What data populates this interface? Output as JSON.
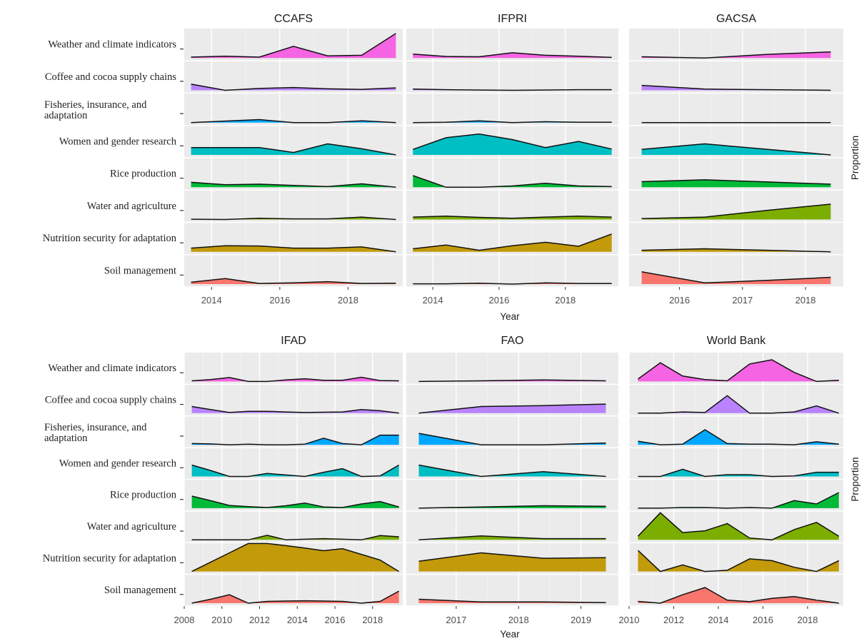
{
  "chart_data": [
    {
      "type": "area",
      "row_labels": [
        "Weather and climate indicators",
        "Coffee and cocoa supply chains",
        "Fisheries, insurance, and\nadaptation",
        "Women and gender research",
        "Rice production",
        "Water and agriculture",
        "Nutrition security for adaptation",
        "Soil management"
      ],
      "colors": [
        "#f564e3",
        "#b983ff",
        "#00a9ff",
        "#00bfc4",
        "#00ba38",
        "#7cae00",
        "#c29a0a",
        "#f8766d"
      ],
      "xlabel": "Year",
      "ylabel": "Proportion",
      "facets": [
        {
          "title": "CCAFS",
          "xlim": [
            2013.2,
            2019.6
          ],
          "xticks": [
            2014,
            2016,
            2018
          ],
          "x": [
            2013.4,
            2014.4,
            2015.4,
            2016.4,
            2017.4,
            2018.4,
            2019.4
          ],
          "series": [
            {
              "values": [
                0.03,
                0.06,
                0.03,
                0.38,
                0.07,
                0.09,
                0.8
              ]
            },
            {
              "values": [
                0.2,
                0.0,
                0.06,
                0.09,
                0.05,
                0.03,
                0.08
              ]
            },
            {
              "values": [
                0.0,
                0.05,
                0.1,
                0.0,
                0.0,
                0.06,
                0.0
              ]
            },
            {
              "values": [
                0.24,
                0.24,
                0.24,
                0.08,
                0.36,
                0.2,
                0.0
              ]
            },
            {
              "values": [
                0.16,
                0.08,
                0.1,
                0.06,
                0.02,
                0.11,
                0.0
              ]
            },
            {
              "values": [
                0.01,
                0.0,
                0.04,
                0.02,
                0.02,
                0.08,
                0.0
              ]
            },
            {
              "values": [
                0.12,
                0.2,
                0.19,
                0.12,
                0.12,
                0.16,
                0.0
              ]
            },
            {
              "values": [
                0.06,
                0.18,
                0.02,
                0.04,
                0.08,
                0.02,
                0.03
              ]
            }
          ]
        },
        {
          "title": "IFPRI",
          "xlim": [
            2013.2,
            2019.6
          ],
          "xticks": [
            2014,
            2016,
            2018
          ],
          "x": [
            2013.4,
            2014.4,
            2015.4,
            2016.4,
            2017.4,
            2018.4,
            2019.4
          ],
          "series": [
            {
              "values": [
                0.13,
                0.05,
                0.04,
                0.17,
                0.09,
                0.06,
                0.02
              ]
            },
            {
              "values": [
                0.04,
                0.02,
                0.01,
                0.0,
                0.01,
                0.02,
                0.02
              ]
            },
            {
              "values": [
                0.0,
                0.01,
                0.06,
                0.0,
                0.03,
                0.01,
                0.01
              ]
            },
            {
              "values": [
                0.18,
                0.56,
                0.68,
                0.5,
                0.24,
                0.44,
                0.19
              ]
            },
            {
              "values": [
                0.38,
                0.0,
                0.0,
                0.04,
                0.13,
                0.04,
                0.02
              ]
            },
            {
              "values": [
                0.08,
                0.11,
                0.07,
                0.04,
                0.08,
                0.11,
                0.08
              ]
            },
            {
              "values": [
                0.1,
                0.22,
                0.05,
                0.2,
                0.31,
                0.18,
                0.58
              ]
            },
            {
              "values": [
                0.01,
                0.01,
                0.03,
                0.0,
                0.04,
                0.02,
                0.02
              ]
            }
          ]
        },
        {
          "title": "GACSA",
          "xlim": [
            2015.2,
            2018.6
          ],
          "xticks": [
            2016,
            2017,
            2018
          ],
          "x": [
            2015.4,
            2016.4,
            2017.4,
            2018.4
          ],
          "series": [
            {
              "values": [
                0.04,
                0.0,
                0.12,
                0.2
              ]
            },
            {
              "values": [
                0.16,
                0.04,
                0.02,
                0.0
              ]
            },
            {
              "values": [
                0.0,
                0.0,
                0.0,
                0.0
              ]
            },
            {
              "values": [
                0.18,
                0.36,
                0.18,
                0.0
              ]
            },
            {
              "values": [
                0.18,
                0.24,
                0.17,
                0.1
              ]
            },
            {
              "values": [
                0.03,
                0.08,
                0.3,
                0.5
              ]
            },
            {
              "values": [
                0.05,
                0.1,
                0.05,
                0.0
              ]
            },
            {
              "values": [
                0.4,
                0.04,
                0.12,
                0.22
              ]
            }
          ]
        },
        {
          "title": "IFAD",
          "xlim": [
            2008,
            2019.6
          ],
          "xticks": [
            2008,
            2010,
            2012,
            2014,
            2016,
            2018
          ],
          "x": [
            2008.4,
            2009.4,
            2010.4,
            2011.4,
            2012.4,
            2013.4,
            2014.4,
            2015.4,
            2016.4,
            2017.4,
            2018.4,
            2019.4
          ],
          "series": [
            {
              "values": [
                0.02,
                0.06,
                0.13,
                0.0,
                0.0,
                0.05,
                0.09,
                0.04,
                0.04,
                0.14,
                0.03,
                0.02
              ]
            },
            {
              "values": [
                0.22,
                0.12,
                0.02,
                0.06,
                0.06,
                0.04,
                0.02,
                0.03,
                0.04,
                0.12,
                0.08,
                0.0
              ]
            },
            {
              "values": [
                0.04,
                0.03,
                0.0,
                0.02,
                0.0,
                0.0,
                0.02,
                0.22,
                0.04,
                0.0,
                0.32,
                0.32
              ]
            },
            {
              "values": [
                0.38,
                0.2,
                0.0,
                0.0,
                0.1,
                0.05,
                0.0,
                0.14,
                0.26,
                0.0,
                0.02,
                0.38
              ]
            },
            {
              "values": [
                0.4,
                0.25,
                0.09,
                0.05,
                0.02,
                0.08,
                0.17,
                0.04,
                0.02,
                0.14,
                0.22,
                0.04
              ]
            },
            {
              "values": [
                0.0,
                0.0,
                0.0,
                0.0,
                0.15,
                0.0,
                0.02,
                0.04,
                0.02,
                0.0,
                0.14,
                0.1
              ]
            },
            {
              "values": [
                0.0,
                0.31,
                0.62,
                0.93,
                0.93,
                0.86,
                0.78,
                0.69,
                0.76,
                0.57,
                0.38,
                0.0
              ]
            },
            {
              "values": [
                0.0,
                0.13,
                0.28,
                0.0,
                0.06,
                0.07,
                0.08,
                0.07,
                0.06,
                0.0,
                0.06,
                0.4
              ]
            }
          ]
        },
        {
          "title": "FAO",
          "xlim": [
            2016.2,
            2019.6
          ],
          "xticks": [
            2017,
            2018,
            2019
          ],
          "x": [
            2016.4,
            2017.4,
            2018.4,
            2019.4
          ],
          "series": [
            {
              "values": [
                0.0,
                0.02,
                0.05,
                0.02
              ]
            },
            {
              "values": [
                0.0,
                0.22,
                0.25,
                0.3
              ]
            },
            {
              "values": [
                0.38,
                0.0,
                0.0,
                0.06
              ]
            },
            {
              "values": [
                0.38,
                0.0,
                0.16,
                0.0
              ]
            },
            {
              "values": [
                0.0,
                0.04,
                0.08,
                0.06
              ]
            },
            {
              "values": [
                0.0,
                0.13,
                0.04,
                0.04
              ]
            },
            {
              "values": [
                0.34,
                0.62,
                0.44,
                0.46
              ]
            },
            {
              "values": [
                0.13,
                0.04,
                0.04,
                0.02
              ]
            }
          ]
        },
        {
          "title": "World Bank",
          "xlim": [
            2010,
            2019.6
          ],
          "xticks": [
            2010,
            2012,
            2014,
            2016,
            2018
          ],
          "x": [
            2010.4,
            2011.4,
            2012.4,
            2013.4,
            2014.4,
            2015.4,
            2016.4,
            2017.4,
            2018.4,
            2019.4
          ],
          "series": [
            {
              "values": [
                0.08,
                0.62,
                0.18,
                0.06,
                0.02,
                0.58,
                0.72,
                0.3,
                0.0,
                0.04
              ]
            },
            {
              "values": [
                0.0,
                0.0,
                0.04,
                0.02,
                0.58,
                0.0,
                0.0,
                0.04,
                0.24,
                0.0
              ]
            },
            {
              "values": [
                0.12,
                0.0,
                0.02,
                0.5,
                0.04,
                0.02,
                0.02,
                0.0,
                0.1,
                0.02
              ]
            },
            {
              "values": [
                0.0,
                0.0,
                0.24,
                0.0,
                0.06,
                0.06,
                0.0,
                0.02,
                0.14,
                0.14
              ]
            },
            {
              "values": [
                0.0,
                0.0,
                0.02,
                0.02,
                0.0,
                0.02,
                0.0,
                0.25,
                0.14,
                0.52
              ]
            },
            {
              "values": [
                0.12,
                0.9,
                0.24,
                0.3,
                0.54,
                0.06,
                0.0,
                0.34,
                0.58,
                0.12
              ]
            },
            {
              "values": [
                0.7,
                0.0,
                0.22,
                0.0,
                0.04,
                0.42,
                0.36,
                0.14,
                0.0,
                0.36
              ]
            },
            {
              "values": [
                0.06,
                0.0,
                0.28,
                0.52,
                0.1,
                0.05,
                0.16,
                0.22,
                0.1,
                0.0
              ]
            }
          ]
        }
      ]
    }
  ]
}
